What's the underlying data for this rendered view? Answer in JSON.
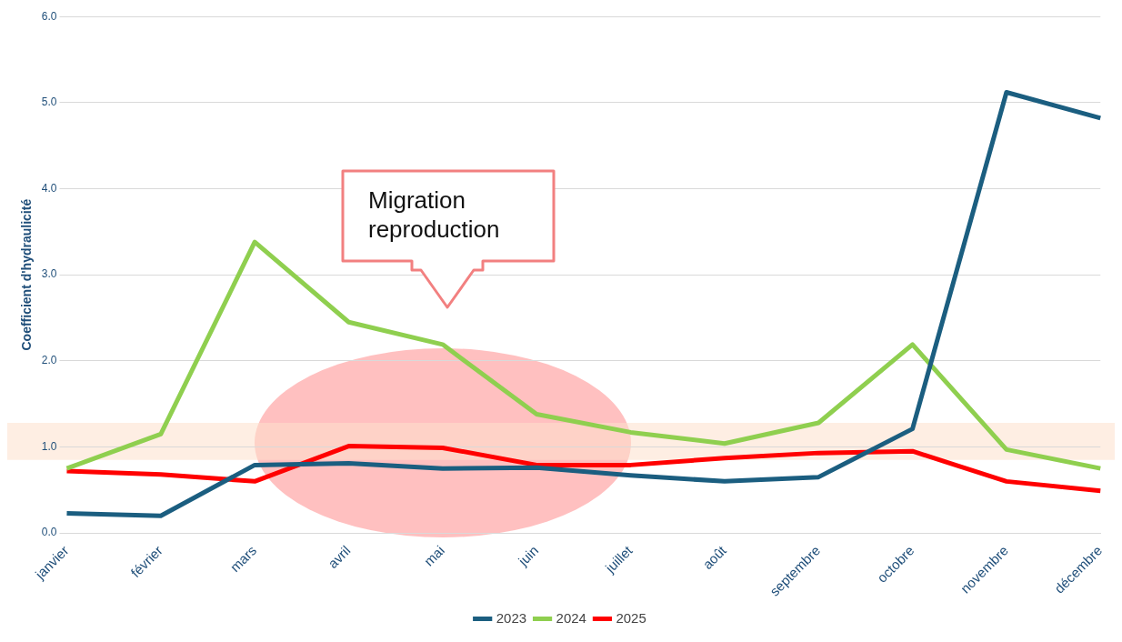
{
  "chart_data": {
    "type": "line",
    "ylabel": "Coefficient d'hydraulicité",
    "categories": [
      "janvier",
      "février",
      "mars",
      "avril",
      "mai",
      "juin",
      "juillet",
      "août",
      "septembre",
      "octobre",
      "novembre",
      "décembre"
    ],
    "series": [
      {
        "name": "2023",
        "color": "#1b5e80",
        "values": [
          0.23,
          0.2,
          0.79,
          0.81,
          0.75,
          0.76,
          0.67,
          0.6,
          0.65,
          1.21,
          5.12,
          4.82
        ]
      },
      {
        "name": "2024",
        "color": "#8fcf4f",
        "values": [
          0.75,
          1.15,
          3.38,
          2.45,
          2.19,
          1.38,
          1.17,
          1.04,
          1.28,
          2.19,
          0.97,
          0.75
        ]
      },
      {
        "name": "2025",
        "color": "#ff0000",
        "values": [
          0.72,
          0.68,
          0.6,
          1.01,
          0.99,
          0.79,
          0.79,
          0.87,
          0.93,
          0.95,
          0.6,
          0.49
        ]
      }
    ],
    "ylim": [
      0,
      6
    ],
    "yticks": [
      {
        "value": 0,
        "label": "0.0"
      },
      {
        "value": 1,
        "label": "1.0"
      },
      {
        "value": 2,
        "label": "2.0"
      },
      {
        "value": 3,
        "label": "3.0"
      },
      {
        "value": 4,
        "label": "4.0"
      },
      {
        "value": 5,
        "label": "5.0"
      },
      {
        "value": 6,
        "label": "6.0"
      }
    ],
    "grid": "y",
    "legend": "bottom",
    "marker": "none",
    "line_style": "solid",
    "bands": [
      {
        "axis": "y",
        "from": 0.85,
        "to": 1.28,
        "color": "#fde0cc"
      }
    ],
    "annotations": [
      "Migration reproduction"
    ]
  }
}
